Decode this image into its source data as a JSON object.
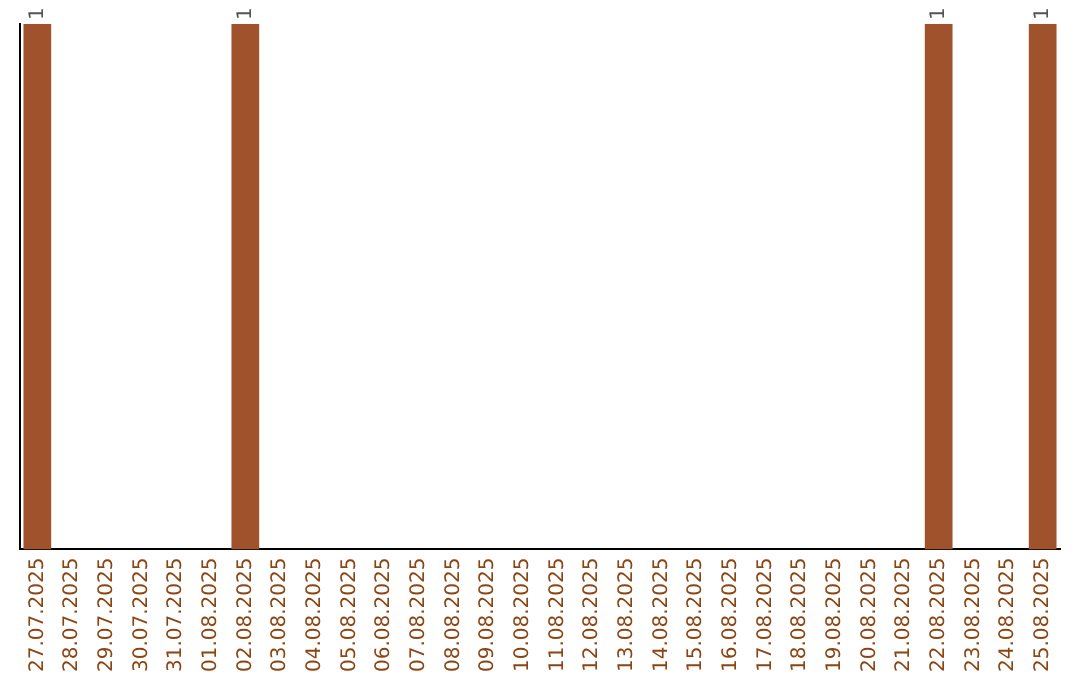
{
  "chart_data": {
    "type": "bar",
    "categories": [
      "27.07.2025",
      "28.07.2025",
      "29.07.2025",
      "30.07.2025",
      "31.07.2025",
      "01.08.2025",
      "02.08.2025",
      "03.08.2025",
      "04.08.2025",
      "05.08.2025",
      "06.08.2025",
      "07.08.2025",
      "08.08.2025",
      "09.08.2025",
      "10.08.2025",
      "11.08.2025",
      "12.08.2025",
      "13.08.2025",
      "14.08.2025",
      "15.08.2025",
      "16.08.2025",
      "17.08.2025",
      "18.08.2025",
      "19.08.2025",
      "20.08.2025",
      "21.08.2025",
      "22.08.2025",
      "23.08.2025",
      "24.08.2025",
      "25.08.2025"
    ],
    "values": [
      1,
      0,
      0,
      0,
      0,
      0,
      1,
      0,
      0,
      0,
      0,
      0,
      0,
      0,
      0,
      0,
      0,
      0,
      0,
      0,
      0,
      0,
      0,
      0,
      0,
      0,
      1,
      0,
      0,
      1
    ],
    "value_labels": [
      "1",
      null,
      null,
      null,
      null,
      null,
      "1",
      null,
      null,
      null,
      null,
      null,
      null,
      null,
      null,
      null,
      null,
      null,
      null,
      null,
      null,
      null,
      null,
      null,
      null,
      null,
      "1",
      null,
      null,
      "1"
    ],
    "color": "#a0522d",
    "grid": false,
    "legend": false
  }
}
